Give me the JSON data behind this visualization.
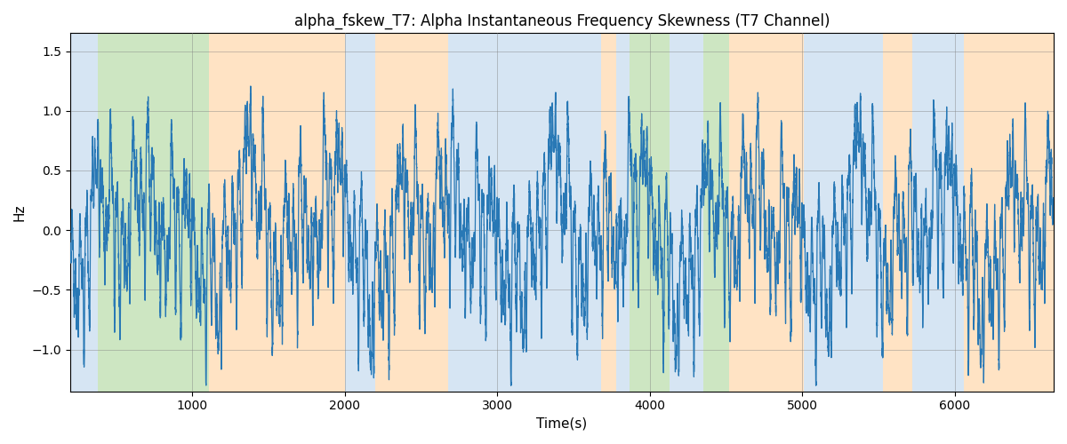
{
  "title": "alpha_fskew_T7: Alpha Instantaneous Frequency Skewness (T7 Channel)",
  "xlabel": "Time(s)",
  "ylabel": "Hz",
  "xlim": [
    200,
    6650
  ],
  "ylim": [
    -1.35,
    1.65
  ],
  "yticks": [
    -1.0,
    -0.5,
    0.0,
    0.5,
    1.0,
    1.5
  ],
  "xticks": [
    1000,
    2000,
    3000,
    4000,
    5000,
    6000
  ],
  "line_color": "#2878b5",
  "line_width": 0.9,
  "background_color": "#ffffff",
  "figsize": [
    12,
    5
  ],
  "dpi": 100,
  "bands": [
    {
      "xmin": 200,
      "xmax": 380,
      "color": "#aecde8",
      "alpha": 0.5
    },
    {
      "xmin": 380,
      "xmax": 1110,
      "color": "#90c878",
      "alpha": 0.45
    },
    {
      "xmin": 1110,
      "xmax": 2000,
      "color": "#ffc88a",
      "alpha": 0.5
    },
    {
      "xmin": 2000,
      "xmax": 2200,
      "color": "#aecde8",
      "alpha": 0.5
    },
    {
      "xmin": 2200,
      "xmax": 2680,
      "color": "#ffc88a",
      "alpha": 0.5
    },
    {
      "xmin": 2680,
      "xmax": 3680,
      "color": "#aecde8",
      "alpha": 0.5
    },
    {
      "xmin": 3680,
      "xmax": 3780,
      "color": "#ffc88a",
      "alpha": 0.5
    },
    {
      "xmin": 3780,
      "xmax": 3870,
      "color": "#aecde8",
      "alpha": 0.5
    },
    {
      "xmin": 3870,
      "xmax": 4130,
      "color": "#90c878",
      "alpha": 0.45
    },
    {
      "xmin": 4130,
      "xmax": 4350,
      "color": "#aecde8",
      "alpha": 0.5
    },
    {
      "xmin": 4350,
      "xmax": 4520,
      "color": "#90c878",
      "alpha": 0.45
    },
    {
      "xmin": 4520,
      "xmax": 5010,
      "color": "#ffc88a",
      "alpha": 0.5
    },
    {
      "xmin": 5010,
      "xmax": 5530,
      "color": "#aecde8",
      "alpha": 0.5
    },
    {
      "xmin": 5530,
      "xmax": 5720,
      "color": "#ffc88a",
      "alpha": 0.5
    },
    {
      "xmin": 5720,
      "xmax": 6060,
      "color": "#aecde8",
      "alpha": 0.5
    },
    {
      "xmin": 6060,
      "xmax": 6650,
      "color": "#ffc88a",
      "alpha": 0.5
    }
  ],
  "seed": 42,
  "n_points": 13000
}
